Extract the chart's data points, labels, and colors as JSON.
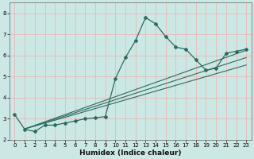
{
  "xlabel": "Humidex (Indice chaleur)",
  "ylabel": "",
  "bg_color": "#cce8e4",
  "grid_color": "#e8b8b8",
  "line_color": "#2a6b60",
  "xlim": [
    -0.5,
    23.5
  ],
  "ylim": [
    2.0,
    8.5
  ],
  "xticks": [
    0,
    1,
    2,
    3,
    4,
    5,
    6,
    7,
    8,
    9,
    10,
    11,
    12,
    13,
    14,
    15,
    16,
    17,
    18,
    19,
    20,
    21,
    22,
    23
  ],
  "yticks": [
    2,
    3,
    4,
    5,
    6,
    7,
    8
  ],
  "curve1_x": [
    0,
    1,
    2,
    3,
    4,
    5,
    6,
    7,
    8,
    9,
    10,
    11,
    12,
    13,
    14,
    15,
    16,
    17,
    18,
    19,
    20,
    21,
    22,
    23
  ],
  "curve1_y": [
    3.2,
    2.5,
    2.4,
    2.7,
    2.7,
    2.8,
    2.9,
    3.0,
    3.05,
    3.1,
    4.9,
    5.9,
    6.7,
    7.8,
    7.5,
    6.9,
    6.4,
    6.3,
    5.8,
    5.3,
    5.4,
    6.1,
    6.2,
    6.3
  ],
  "line1_x": [
    1.0,
    23
  ],
  "line1_y": [
    2.52,
    5.55
  ],
  "line2_x": [
    1.0,
    23
  ],
  "line2_y": [
    2.52,
    5.9
  ],
  "line3_x": [
    1.0,
    23
  ],
  "line3_y": [
    2.52,
    6.25
  ]
}
